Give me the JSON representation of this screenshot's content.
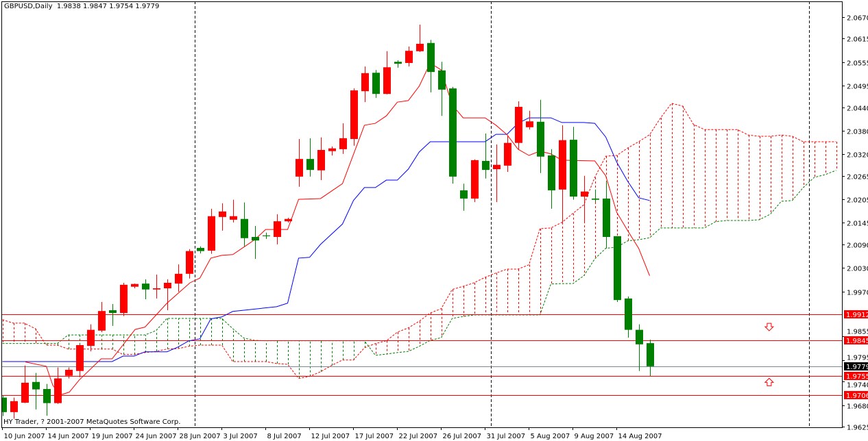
{
  "header": {
    "symbol_period": "GBPUSD,Daily",
    "ohlc": "1.9838 1.9847 1.9754 1.9779"
  },
  "footer": {
    "copyright": "HY Trader, ? 2001-2007 MetaQuotes Software Corp."
  },
  "colors": {
    "bull": "#FF0000",
    "bear": "#008000",
    "tenkan": "#FF0000",
    "kijun": "#0000FF",
    "span_a": "#FF0000",
    "span_b": "#008000",
    "level": "#FF0000",
    "bid": "#778899"
  },
  "chart_data": {
    "type": "candlestick",
    "title": "GBPUSD,Daily",
    "ylim": [
      1.9625,
      2.067
    ],
    "y_ticks": [
      "2.0670",
      "2.0615",
      "2.0555",
      "2.0495",
      "2.0440",
      "2.0380",
      "2.0320",
      "2.0265",
      "2.0205",
      "2.0145",
      "2.0090",
      "2.0030",
      "1.9970",
      "1.9855",
      "1.9795",
      "1.9740",
      "1.9680",
      "1.9625"
    ],
    "x_ticks": [
      {
        "bar": 0,
        "label": "10 Jun 2007"
      },
      {
        "bar": 4,
        "label": "14 Jun 2007"
      },
      {
        "bar": 8,
        "label": "19 Jun 2007"
      },
      {
        "bar": 12,
        "label": "24 Jun 2007"
      },
      {
        "bar": 16,
        "label": "28 Jun 2007"
      },
      {
        "bar": 20,
        "label": "3 Jul 2007"
      },
      {
        "bar": 24,
        "label": "8 Jul 2007"
      },
      {
        "bar": 28,
        "label": "12 Jul 2007"
      },
      {
        "bar": 32,
        "label": "17 Jul 2007"
      },
      {
        "bar": 36,
        "label": "22 Jul 2007"
      },
      {
        "bar": 40,
        "label": "26 Jul 2007"
      },
      {
        "bar": 44,
        "label": "31 Jul 2007"
      },
      {
        "bar": 48,
        "label": "5 Aug 2007"
      },
      {
        "bar": 52,
        "label": "9 Aug 2007"
      },
      {
        "bar": 56,
        "label": "14 Aug 2007"
      }
    ],
    "period_separators": [
      18,
      45,
      74
    ],
    "candles_ohlc": [
      [
        1.9699,
        1.9704,
        1.9652,
        1.9662
      ],
      [
        1.9662,
        1.9699,
        1.9645,
        1.969
      ],
      [
        1.9686,
        1.9781,
        1.9685,
        1.9737
      ],
      [
        1.9739,
        1.9762,
        1.9669,
        1.972
      ],
      [
        1.9721,
        1.9734,
        1.9653,
        1.9685
      ],
      [
        1.9685,
        1.9776,
        1.9683,
        1.9748
      ],
      [
        1.9755,
        1.9776,
        1.9748,
        1.977
      ],
      [
        1.9767,
        1.9835,
        1.9751,
        1.9833
      ],
      [
        1.9831,
        1.9886,
        1.9817,
        1.9872
      ],
      [
        1.987,
        1.9943,
        1.9866,
        1.992
      ],
      [
        1.9922,
        1.9938,
        1.9882,
        1.9915
      ],
      [
        1.9915,
        1.9992,
        1.9907,
        1.9987
      ],
      [
        1.9982,
        1.999,
        1.9978,
        1.9989
      ],
      [
        1.999,
        2.0001,
        1.995,
        1.9975
      ],
      [
        1.9975,
        2.0013,
        1.9952,
        1.9978
      ],
      [
        1.9978,
        2.0001,
        1.9922,
        1.9992
      ],
      [
        1.999,
        2.0039,
        1.9969,
        2.0015
      ],
      [
        2.0015,
        2.0078,
        2.0003,
        2.0073
      ],
      [
        2.0081,
        2.0085,
        2.0067,
        2.0073
      ],
      [
        2.0074,
        2.0181,
        2.0066,
        2.0162
      ],
      [
        2.016,
        2.0195,
        2.0125,
        2.0174
      ],
      [
        2.0153,
        2.0204,
        2.0146,
        2.0162
      ],
      [
        2.0155,
        2.0197,
        2.0085,
        2.0106
      ],
      [
        2.0109,
        2.0137,
        2.0053,
        2.01
      ],
      [
        2.0113,
        2.012,
        2.0104,
        2.0111
      ],
      [
        2.0109,
        2.0167,
        2.009,
        2.0149
      ],
      [
        2.0149,
        2.0158,
        2.0146,
        2.0155
      ],
      [
        2.0263,
        2.0359,
        2.0237,
        2.0308
      ],
      [
        2.0308,
        2.0361,
        2.0263,
        2.028
      ],
      [
        2.0279,
        2.0363,
        2.0254,
        2.0331
      ],
      [
        2.0328,
        2.034,
        2.0317,
        2.0335
      ],
      [
        2.0333,
        2.0399,
        2.0321,
        2.0361
      ],
      [
        2.0359,
        2.0488,
        2.0342,
        2.0483
      ],
      [
        2.0481,
        2.0544,
        2.0453,
        2.0527
      ],
      [
        2.0528,
        2.0535,
        2.0464,
        2.0474
      ],
      [
        2.0474,
        2.0583,
        2.0473,
        2.0542
      ],
      [
        2.0556,
        2.056,
        2.0541,
        2.0551
      ],
      [
        2.0553,
        2.0595,
        2.0544,
        2.0584
      ],
      [
        2.0583,
        2.0651,
        2.0581,
        2.0602
      ],
      [
        2.0604,
        2.0612,
        2.0478,
        2.053
      ],
      [
        2.0534,
        2.0556,
        2.0418,
        2.0485
      ],
      [
        2.0488,
        2.0492,
        2.0245,
        2.0263
      ],
      [
        2.0228,
        2.0245,
        2.0176,
        2.0207
      ],
      [
        2.0207,
        2.0307,
        2.0198,
        2.0305
      ],
      [
        2.0303,
        2.0373,
        2.0258,
        2.028
      ],
      [
        2.0282,
        2.0345,
        2.0198,
        2.0293
      ],
      [
        2.0291,
        2.0366,
        2.0275,
        2.0349
      ],
      [
        2.0349,
        2.0455,
        2.0333,
        2.0441
      ],
      [
        2.0389,
        2.0431,
        2.0383,
        2.0404
      ],
      [
        2.0403,
        2.0459,
        2.0272,
        2.0314
      ],
      [
        2.0317,
        2.0333,
        2.0181,
        2.0228
      ],
      [
        2.023,
        2.0394,
        2.0146,
        2.0356
      ],
      [
        2.0357,
        2.039,
        2.0204,
        2.0212
      ],
      [
        2.0212,
        2.0265,
        2.0148,
        2.0225
      ],
      [
        2.0207,
        2.023,
        2.0198,
        2.0204
      ],
      [
        2.0207,
        2.0252,
        2.008,
        2.0109
      ],
      [
        2.0111,
        2.0111,
        1.9943,
        1.9948
      ],
      [
        1.9952,
        1.9957,
        1.9852,
        1.9872
      ],
      [
        1.9872,
        1.9886,
        1.9767,
        1.9835
      ],
      [
        1.9838,
        1.9847,
        1.9754,
        1.9779
      ]
    ],
    "tenkan_sen": [
      [
        2.1,
        1.979
      ],
      [
        4,
        1.9779
      ],
      [
        4.6,
        1.973
      ],
      [
        5.3,
        1.9706
      ],
      [
        6.1,
        1.9713
      ],
      [
        7,
        1.9744
      ],
      [
        9,
        1.9798
      ],
      [
        10,
        1.9798
      ],
      [
        12.1,
        1.9873
      ],
      [
        13,
        1.9879
      ],
      [
        15,
        1.994
      ],
      [
        17.1,
        1.9992
      ],
      [
        18,
        2.0004
      ],
      [
        19,
        2.0055
      ],
      [
        20,
        2.0062
      ],
      [
        21,
        2.0064
      ],
      [
        22,
        2.0083
      ],
      [
        23,
        2.0102
      ],
      [
        24,
        2.0128
      ],
      [
        26,
        2.0128
      ],
      [
        27,
        2.0205
      ],
      [
        29,
        2.0207
      ],
      [
        31,
        2.0245
      ],
      [
        33,
        2.0394
      ],
      [
        34,
        2.0399
      ],
      [
        35,
        2.0418
      ],
      [
        36,
        2.0453
      ],
      [
        37,
        2.0457
      ],
      [
        38,
        2.0494
      ],
      [
        39,
        2.0553
      ],
      [
        40,
        2.0535
      ],
      [
        41,
        2.0446
      ],
      [
        42,
        2.0413
      ],
      [
        44,
        2.0413
      ],
      [
        45,
        2.0394
      ],
      [
        46,
        2.037
      ],
      [
        47,
        2.0333
      ],
      [
        48,
        2.0317
      ],
      [
        49,
        2.0328
      ],
      [
        50,
        2.0321
      ],
      [
        51,
        2.0305
      ],
      [
        54,
        2.0303
      ],
      [
        55,
        2.0265
      ],
      [
        56,
        2.0172
      ],
      [
        57,
        2.0125
      ],
      [
        58,
        2.008
      ],
      [
        59,
        2.001
      ]
    ],
    "kijun_sen": [
      [
        0,
        1.9791
      ],
      [
        10,
        1.9791
      ],
      [
        11,
        1.9805
      ],
      [
        12,
        1.9805
      ],
      [
        13,
        1.9816
      ],
      [
        15,
        1.9816
      ],
      [
        16,
        1.9828
      ],
      [
        17,
        1.9844
      ],
      [
        18,
        1.9849
      ],
      [
        19,
        1.99
      ],
      [
        20,
        1.9905
      ],
      [
        21,
        1.9919
      ],
      [
        25,
        1.9931
      ],
      [
        26,
        1.994
      ],
      [
        27,
        2.0055
      ],
      [
        28,
        2.0057
      ],
      [
        29,
        2.009
      ],
      [
        31,
        2.0142
      ],
      [
        32,
        2.0202
      ],
      [
        33,
        2.0235
      ],
      [
        34,
        2.0235
      ],
      [
        35,
        2.0254
      ],
      [
        36,
        2.0254
      ],
      [
        37,
        2.0282
      ],
      [
        38,
        2.0326
      ],
      [
        39,
        2.0352
      ],
      [
        44,
        2.0352
      ],
      [
        45,
        2.0371
      ],
      [
        46,
        2.0371
      ],
      [
        47,
        2.0399
      ],
      [
        48,
        2.0413
      ],
      [
        50,
        2.0413
      ],
      [
        51,
        2.0401
      ],
      [
        53,
        2.0401
      ],
      [
        54,
        2.0399
      ],
      [
        55,
        2.0364
      ],
      [
        56,
        2.03
      ],
      [
        57,
        2.0251
      ],
      [
        58,
        2.0209
      ],
      [
        59,
        2.0202
      ]
    ],
    "senkou_span_a": [
      1.9898,
      1.9889,
      1.9889,
      1.9875,
      1.9833,
      1.9833,
      1.9823,
      1.9823,
      1.9823,
      1.9823,
      1.9823,
      1.9809,
      1.9809,
      1.9814,
      1.9817,
      1.9823,
      1.9824,
      1.983,
      1.9833,
      1.9833,
      1.9833,
      1.9791,
      1.9791,
      1.9791,
      1.9791,
      1.9786,
      1.9784,
      1.9748,
      1.9753,
      1.9765,
      1.9781,
      1.9795,
      1.9795,
      1.9826,
      1.9837,
      1.9844,
      1.9866,
      1.9877,
      1.9894,
      1.9915,
      1.9926,
      1.9975,
      1.9983,
      1.9992,
      2.0006,
      2.0017,
      2.0027,
      2.0027,
      2.0038,
      2.013,
      2.0132,
      2.0146,
      2.0169,
      2.0191,
      2.0261,
      2.0315,
      2.0317,
      2.0336,
      2.0352,
      2.037,
      2.0413,
      2.045,
      2.0443,
      2.0396,
      2.0383,
      2.0383,
      2.0383,
      2.0383,
      2.0369,
      2.0366,
      2.0366,
      2.0369,
      2.0366,
      2.0352,
      2.0352,
      2.0352,
      2.0352
    ],
    "senkou_span_b": [
      1.9837,
      1.9837,
      1.9837,
      1.9837,
      1.9837,
      1.9837,
      1.9859,
      1.9859,
      1.9859,
      1.9859,
      1.9859,
      1.9859,
      1.9859,
      1.9859,
      1.987,
      1.9901,
      1.9901,
      1.9901,
      1.9901,
      1.9901,
      1.9901,
      1.9875,
      1.9851,
      1.9845,
      1.9844,
      1.9844,
      1.9844,
      1.9844,
      1.9844,
      1.9844,
      1.9844,
      1.9844,
      1.9844,
      1.9844,
      1.9807,
      1.981,
      1.9814,
      1.9817,
      1.983,
      1.9845,
      1.9852,
      1.9901,
      1.9906,
      1.991,
      1.991,
      1.991,
      1.991,
      1.991,
      1.991,
      1.991,
      1.9989,
      1.999,
      1.999,
      2.001,
      2.0053,
      2.008,
      2.0083,
      2.0099,
      2.0102,
      2.0107,
      2.0132,
      2.0132,
      2.0132,
      2.0132,
      2.0132,
      2.0148,
      2.0151,
      2.0151,
      2.0151,
      2.0153,
      2.0167,
      2.02,
      2.0202,
      2.0235,
      2.0261,
      2.0268,
      2.0279
    ],
    "levels": [
      {
        "price": 1.9912,
        "label": "1.9912",
        "kind": "level"
      },
      {
        "price": 1.9845,
        "label": "1.9845",
        "kind": "level"
      },
      {
        "price": 1.9779,
        "label": "1.9779",
        "kind": "bid"
      },
      {
        "price": 1.9755,
        "label": "1.9755",
        "kind": "level"
      },
      {
        "price": 1.9706,
        "label": "1.9706",
        "kind": "level"
      }
    ],
    "arrows": [
      {
        "direction": "down",
        "price": 1.988,
        "bar": 69.9
      },
      {
        "direction": "up",
        "price": 1.9738,
        "bar": 69.9
      }
    ]
  }
}
